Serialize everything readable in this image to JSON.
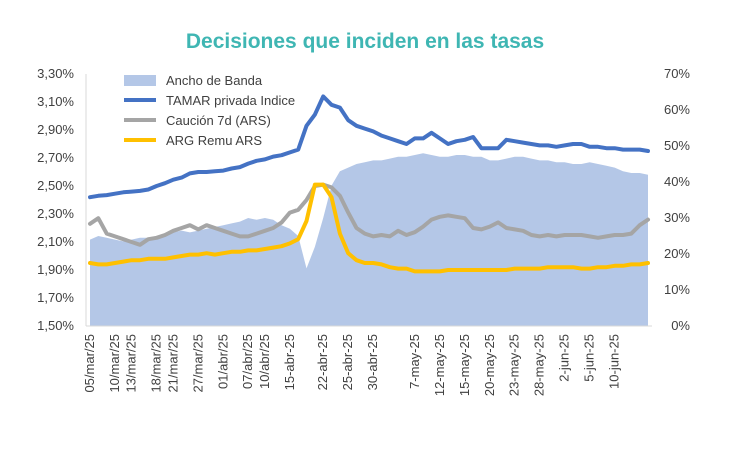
{
  "chart_data": {
    "type": "line",
    "title": "Decisiones que inciden en las tasas",
    "xlabel": "",
    "ylabel_left": "",
    "ylabel_right": "",
    "left_axis": {
      "ticks": [
        "1,50%",
        "1,70%",
        "1,90%",
        "2,10%",
        "2,30%",
        "2,50%",
        "2,70%",
        "2,90%",
        "3,10%",
        "3,30%"
      ],
      "min": 1.5,
      "max": 3.3
    },
    "right_axis": {
      "ticks": [
        "0%",
        "10%",
        "20%",
        "30%",
        "40%",
        "50%",
        "60%",
        "70%"
      ],
      "min": 0,
      "max": 70
    },
    "grid": false,
    "legend_position": "top-left",
    "x_tick_labels": [
      "05/mar/25",
      "10/mar/25",
      "13/mar/25",
      "18/mar/25",
      "21/mar/25",
      "27/mar/25",
      "01/abr/25",
      "07/abr/25",
      "10/abr/25",
      "15-abr-25",
      "22-abr-25",
      "25-abr-25",
      "30-abr-25",
      "7-may-25",
      "12-may-25",
      "15-may-25",
      "20-may-25",
      "23-may-25",
      "28-may-25",
      "2-jun-25",
      "5-jun-25",
      "10-jun-25"
    ],
    "x_tick_indices": [
      0,
      3,
      5,
      8,
      10,
      13,
      16,
      19,
      21,
      24,
      28,
      31,
      34,
      39,
      42,
      45,
      48,
      51,
      54,
      57,
      60,
      63
    ],
    "n_points": 68,
    "series": [
      {
        "name": "Ancho de Banda",
        "type": "area",
        "axis": "right",
        "color": "#b4c7e7",
        "values": [
          24,
          25,
          24.5,
          24,
          23.5,
          24,
          24.5,
          24.5,
          25,
          25.5,
          26,
          26.5,
          26,
          26.5,
          27,
          27.5,
          28,
          28.5,
          29,
          30,
          29.5,
          30,
          29.5,
          28,
          27,
          25,
          16,
          22,
          30,
          39,
          43,
          44,
          45,
          45.5,
          46,
          46,
          46.5,
          47,
          47,
          47.5,
          48,
          47.5,
          47,
          47,
          47.5,
          47.5,
          47,
          47,
          46,
          46,
          46.5,
          47,
          47,
          46.5,
          46,
          46,
          45.5,
          45.5,
          45,
          45,
          45.5,
          45,
          44.5,
          44,
          43,
          42.5,
          42.5,
          42
        ]
      },
      {
        "name": "TAMAR privada Indice",
        "type": "line",
        "axis": "left",
        "color": "#4472c4",
        "values": [
          2.42,
          2.43,
          2.435,
          2.445,
          2.455,
          2.46,
          2.465,
          2.475,
          2.5,
          2.52,
          2.545,
          2.56,
          2.59,
          2.6,
          2.6,
          2.605,
          2.61,
          2.625,
          2.635,
          2.66,
          2.68,
          2.69,
          2.71,
          2.72,
          2.74,
          2.76,
          2.93,
          3.01,
          3.14,
          3.08,
          3.06,
          2.97,
          2.93,
          2.91,
          2.89,
          2.86,
          2.84,
          2.82,
          2.8,
          2.84,
          2.84,
          2.88,
          2.84,
          2.8,
          2.82,
          2.83,
          2.85,
          2.77,
          2.77,
          2.77,
          2.83,
          2.82,
          2.81,
          2.8,
          2.79,
          2.79,
          2.78,
          2.79,
          2.8,
          2.8,
          2.78,
          2.78,
          2.77,
          2.77,
          2.76,
          2.76,
          2.76,
          2.75
        ]
      },
      {
        "name": "Caución 7d (ARS)",
        "type": "line",
        "axis": "left",
        "color": "#a5a5a5",
        "values": [
          2.23,
          2.27,
          2.16,
          2.14,
          2.12,
          2.1,
          2.08,
          2.12,
          2.13,
          2.15,
          2.18,
          2.2,
          2.22,
          2.19,
          2.22,
          2.2,
          2.18,
          2.16,
          2.14,
          2.14,
          2.16,
          2.18,
          2.2,
          2.24,
          2.31,
          2.33,
          2.4,
          2.5,
          2.51,
          2.49,
          2.43,
          2.31,
          2.2,
          2.16,
          2.14,
          2.15,
          2.14,
          2.18,
          2.15,
          2.17,
          2.21,
          2.26,
          2.28,
          2.29,
          2.28,
          2.27,
          2.2,
          2.19,
          2.21,
          2.24,
          2.2,
          2.19,
          2.18,
          2.15,
          2.14,
          2.15,
          2.14,
          2.15,
          2.15,
          2.15,
          2.14,
          2.13,
          2.14,
          2.15,
          2.15,
          2.16,
          2.22,
          2.26
        ]
      },
      {
        "name": "ARG Remu ARS",
        "type": "line",
        "axis": "left",
        "color": "#ffc000",
        "values": [
          1.95,
          1.94,
          1.94,
          1.95,
          1.96,
          1.97,
          1.97,
          1.98,
          1.98,
          1.98,
          1.99,
          2.0,
          2.01,
          2.01,
          2.02,
          2.01,
          2.02,
          2.03,
          2.03,
          2.04,
          2.04,
          2.05,
          2.06,
          2.07,
          2.09,
          2.12,
          2.25,
          2.51,
          2.51,
          2.42,
          2.16,
          2.02,
          1.97,
          1.95,
          1.95,
          1.94,
          1.92,
          1.91,
          1.91,
          1.89,
          1.89,
          1.89,
          1.89,
          1.9,
          1.9,
          1.9,
          1.9,
          1.9,
          1.9,
          1.9,
          1.9,
          1.91,
          1.91,
          1.91,
          1.91,
          1.92,
          1.92,
          1.92,
          1.92,
          1.91,
          1.91,
          1.92,
          1.92,
          1.93,
          1.93,
          1.94,
          1.94,
          1.95
        ]
      }
    ]
  }
}
